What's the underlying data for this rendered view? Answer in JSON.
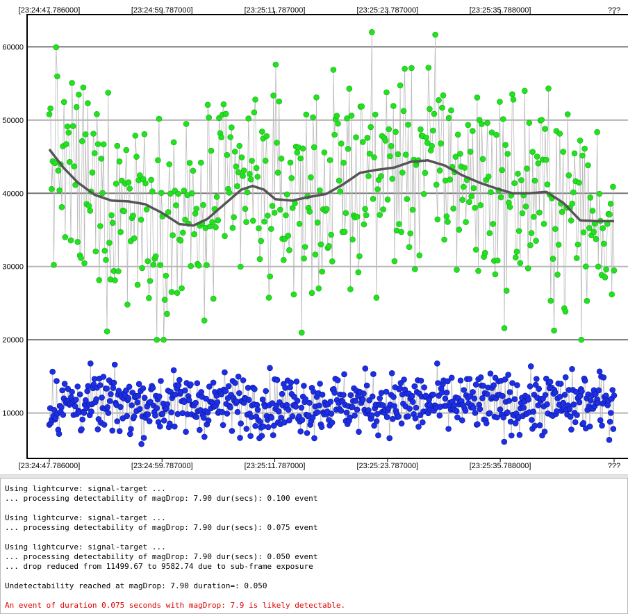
{
  "chart_data": {
    "type": "scatter",
    "title": "",
    "xlabel": "",
    "ylabel": "",
    "x_tick_labels": [
      "[23:24:47.786000]",
      "[23:24:59.787000]",
      "[23:25:11.787000]",
      "[23:25:23.787000]",
      "[23:25:35.788000]",
      "???"
    ],
    "x_range": [
      0,
      1
    ],
    "ylim": [
      3800,
      64400
    ],
    "y_ticks": [
      10000,
      20000,
      30000,
      40000,
      50000,
      60000
    ],
    "grid": "horizontal",
    "colors": {
      "target": "#22e11f",
      "comparison": "#1d2fe6",
      "smooth": "#555555",
      "connector": "#bbbbbb"
    },
    "series": [
      {
        "kind": "target-points",
        "color": "#22e11f",
        "n_points": 500,
        "mean_level": 41000,
        "spread": [
          20000,
          62000
        ]
      },
      {
        "kind": "smoothed-target",
        "color": "#555555",
        "values": [
          [
            0.0,
            46000
          ],
          [
            0.025,
            43500
          ],
          [
            0.05,
            41500
          ],
          [
            0.08,
            39800
          ],
          [
            0.11,
            39000
          ],
          [
            0.14,
            38900
          ],
          [
            0.17,
            38500
          ],
          [
            0.2,
            37300
          ],
          [
            0.23,
            35800
          ],
          [
            0.255,
            35600
          ],
          [
            0.28,
            36500
          ],
          [
            0.31,
            38500
          ],
          [
            0.34,
            40500
          ],
          [
            0.36,
            41000
          ],
          [
            0.38,
            40500
          ],
          [
            0.4,
            39200
          ],
          [
            0.43,
            39000
          ],
          [
            0.46,
            39500
          ],
          [
            0.49,
            39900
          ],
          [
            0.52,
            41200
          ],
          [
            0.55,
            42800
          ],
          [
            0.58,
            43200
          ],
          [
            0.61,
            43500
          ],
          [
            0.64,
            44300
          ],
          [
            0.67,
            44500
          ],
          [
            0.7,
            43800
          ],
          [
            0.73,
            42500
          ],
          [
            0.76,
            41500
          ],
          [
            0.79,
            40700
          ],
          [
            0.82,
            40000
          ],
          [
            0.85,
            40000
          ],
          [
            0.88,
            40200
          ],
          [
            0.91,
            38700
          ],
          [
            0.94,
            36300
          ],
          [
            0.97,
            36200
          ],
          [
            1.0,
            36200
          ]
        ]
      },
      {
        "kind": "comparison-points",
        "color": "#1d2fe6",
        "n_points": 700,
        "mean_level": 11300,
        "spread": [
          5500,
          17500
        ]
      }
    ]
  },
  "log": {
    "lines": [
      {
        "text": "Using lightcurve: signal-target ...",
        "color": "black"
      },
      {
        "text": "... processing detectability of magDrop: 7.90 dur(secs): 0.100 event",
        "color": "black"
      },
      {
        "text": "",
        "color": "black"
      },
      {
        "text": "Using lightcurve: signal-target ...",
        "color": "black"
      },
      {
        "text": "... processing detectability of magDrop: 7.90 dur(secs): 0.075 event",
        "color": "black"
      },
      {
        "text": "",
        "color": "black"
      },
      {
        "text": "Using lightcurve: signal-target ...",
        "color": "black"
      },
      {
        "text": "... processing detectability of magDrop: 7.90 dur(secs): 0.050 event",
        "color": "black"
      },
      {
        "text": "... drop reduced from 11499.67 to 9582.74 due to sub-frame exposure",
        "color": "black"
      },
      {
        "text": "",
        "color": "black"
      },
      {
        "text": "Undetectability reached at magDrop: 7.90 duration=: 0.050",
        "color": "black"
      },
      {
        "text": "",
        "color": "black"
      },
      {
        "text": "An event of duration 0.075 seconds with magDrop: 7.9 is likely detectable.",
        "color": "red"
      }
    ]
  }
}
